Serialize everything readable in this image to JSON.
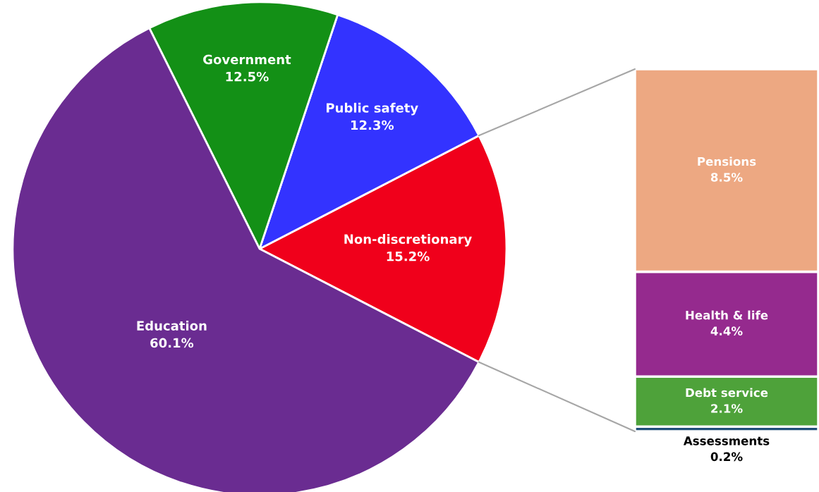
{
  "chart_data": [
    {
      "type": "pie",
      "categories": [
        "Non-discretionary",
        "Public safety",
        "Government",
        "Education"
      ],
      "values": [
        15.2,
        12.3,
        12.5,
        60.1
      ],
      "colors": [
        "#f0001b",
        "#3333ff",
        "#139016",
        "#6a2c91"
      ],
      "value_labels": [
        "15.2%",
        "12.3%",
        "12.5%",
        "60.1%"
      ]
    },
    {
      "type": "bar",
      "stacked": true,
      "categories": [
        null
      ],
      "tick_labels": false,
      "series": [
        {
          "name": "Assessments",
          "color": "#1f4e79",
          "values": [
            0.2
          ],
          "value_labels": [
            "0.2%"
          ]
        },
        {
          "name": "Debt service",
          "color": "#4ea23a",
          "values": [
            2.1
          ],
          "value_labels": [
            "2.1%"
          ]
        },
        {
          "name": "Health & life",
          "color": "#952a8e",
          "values": [
            4.4
          ],
          "value_labels": [
            "4.4%"
          ]
        },
        {
          "name": "Pensions",
          "color": "#eda882",
          "values": [
            8.5
          ],
          "value_labels": [
            "8.5%"
          ]
        }
      ]
    }
  ]
}
